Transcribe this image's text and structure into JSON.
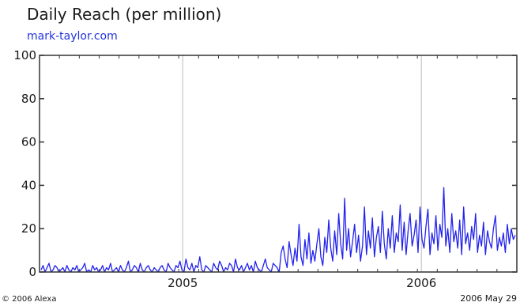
{
  "chart_data": {
    "type": "line",
    "title": "Daily Reach (per million)",
    "subtitle": "mark-taylor.com",
    "xlabel": "",
    "ylabel": "",
    "ylim": [
      0,
      100
    ],
    "y_ticks": [
      0,
      20,
      40,
      60,
      80,
      100
    ],
    "x_ticks": [
      "2005",
      "2006"
    ],
    "grid": "vertical at year ticks",
    "series_color": "#2222ee",
    "series": [
      {
        "values": [
          1,
          3,
          0,
          2,
          4,
          0,
          1,
          3,
          2,
          0,
          1,
          2,
          0,
          3,
          1,
          0,
          2,
          1,
          3,
          0,
          1,
          2,
          4,
          0,
          1,
          0,
          3,
          1,
          2,
          0,
          1,
          3,
          0,
          2,
          1,
          4,
          0,
          1,
          2,
          0,
          3,
          1,
          0,
          2,
          5,
          0,
          1,
          3,
          2,
          0,
          4,
          1,
          0,
          2,
          3,
          1,
          0,
          2,
          1,
          0,
          2,
          3,
          1,
          0,
          4,
          2,
          1,
          0,
          3,
          2,
          5,
          1,
          0,
          6,
          2,
          1,
          4,
          0,
          3,
          2,
          7,
          1,
          0,
          3,
          2,
          1,
          0,
          4,
          2,
          1,
          5,
          3,
          0,
          2,
          1,
          4,
          3,
          0,
          6,
          2,
          1,
          3,
          0,
          2,
          4,
          1,
          3,
          0,
          5,
          2,
          1,
          0,
          3,
          6,
          2,
          1,
          0,
          4,
          3,
          2,
          0,
          9,
          12,
          6,
          2,
          14,
          8,
          3,
          11,
          5,
          22,
          7,
          3,
          15,
          6,
          18,
          4,
          10,
          5,
          13,
          20,
          7,
          3,
          16,
          9,
          24,
          11,
          5,
          19,
          8,
          27,
          13,
          6,
          34,
          10,
          20,
          7,
          14,
          22,
          9,
          17,
          5,
          12,
          30,
          8,
          19,
          11,
          25,
          7,
          16,
          21,
          9,
          28,
          13,
          6,
          20,
          11,
          26,
          9,
          18,
          14,
          31,
          10,
          23,
          8,
          19,
          27,
          12,
          17,
          24,
          9,
          30,
          15,
          11,
          21,
          29,
          8,
          18,
          13,
          26,
          10,
          22,
          16,
          39,
          12,
          20,
          9,
          27,
          14,
          19,
          11,
          24,
          8,
          30,
          13,
          18,
          10,
          21,
          15,
          27,
          9,
          17,
          12,
          23,
          8,
          19,
          14,
          11,
          20,
          26,
          10,
          16,
          12,
          18,
          9,
          22,
          13,
          20,
          15,
          17
        ]
      }
    ]
  }
}
